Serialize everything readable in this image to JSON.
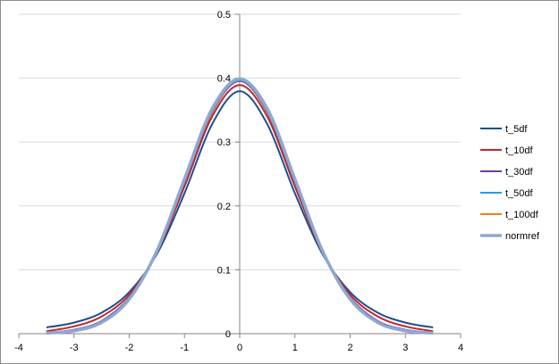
{
  "chart_data": {
    "type": "line",
    "title": "",
    "xlabel": "",
    "ylabel": "",
    "xlim": [
      -4,
      4
    ],
    "ylim": [
      0,
      0.5
    ],
    "x_ticks": [
      -4,
      -3,
      -2,
      -1,
      0,
      1,
      2,
      3,
      4
    ],
    "y_ticks": [
      0,
      0.1,
      0.2,
      0.3,
      0.4,
      0.5
    ],
    "x_tick_labels": [
      "-4",
      "-3",
      "-2",
      "-1",
      "0",
      "1",
      "2",
      "3",
      "4"
    ],
    "y_tick_labels": [
      "0",
      "0.1",
      "0.2",
      "0.3",
      "0.4",
      "0.5"
    ],
    "grid": "horizontal",
    "legend_position": "right",
    "x": [
      -3.5,
      -3.0,
      -2.5,
      -2.0,
      -1.5,
      -1.0,
      -0.5,
      0.0,
      0.5,
      1.0,
      1.5,
      2.0,
      2.5,
      3.0,
      3.5
    ],
    "series": [
      {
        "name": "t_5df",
        "color": "#1f4e8c",
        "values": [
          0.0097,
          0.0173,
          0.0329,
          0.0651,
          0.1245,
          0.2197,
          0.3279,
          0.3796,
          0.3279,
          0.2197,
          0.1245,
          0.0651,
          0.0329,
          0.0173,
          0.0097
        ]
      },
      {
        "name": "t_10df",
        "color": "#c0272d",
        "values": [
          0.0038,
          0.0114,
          0.0269,
          0.0611,
          0.1274,
          0.2304,
          0.3397,
          0.3891,
          0.3397,
          0.2304,
          0.1274,
          0.0611,
          0.0269,
          0.0114,
          0.0038
        ]
      },
      {
        "name": "t_30df",
        "color": "#6b3d9a",
        "values": [
          0.0015,
          0.0062,
          0.0198,
          0.0567,
          0.1291,
          0.2369,
          0.3464,
          0.3956,
          0.3464,
          0.2369,
          0.1291,
          0.0567,
          0.0198,
          0.0062,
          0.0015
        ]
      },
      {
        "name": "t_50df",
        "color": "#2e9bd6",
        "values": [
          0.0012,
          0.0055,
          0.0187,
          0.0557,
          0.1292,
          0.2381,
          0.3477,
          0.3969,
          0.3477,
          0.2381,
          0.1292,
          0.0557,
          0.0187,
          0.0055,
          0.0012
        ]
      },
      {
        "name": "t_100df",
        "color": "#f07f1a",
        "values": [
          0.001,
          0.005,
          0.018,
          0.055,
          0.1294,
          0.239,
          0.3487,
          0.3979,
          0.3487,
          0.239,
          0.1294,
          0.055,
          0.018,
          0.005,
          0.001
        ]
      },
      {
        "name": "normref",
        "color": "#8fa8d0",
        "values": [
          0.0009,
          0.0044,
          0.0175,
          0.054,
          0.1295,
          0.242,
          0.3521,
          0.3989,
          0.3521,
          0.242,
          0.1295,
          0.054,
          0.0175,
          0.0044,
          0.0009
        ]
      }
    ]
  }
}
